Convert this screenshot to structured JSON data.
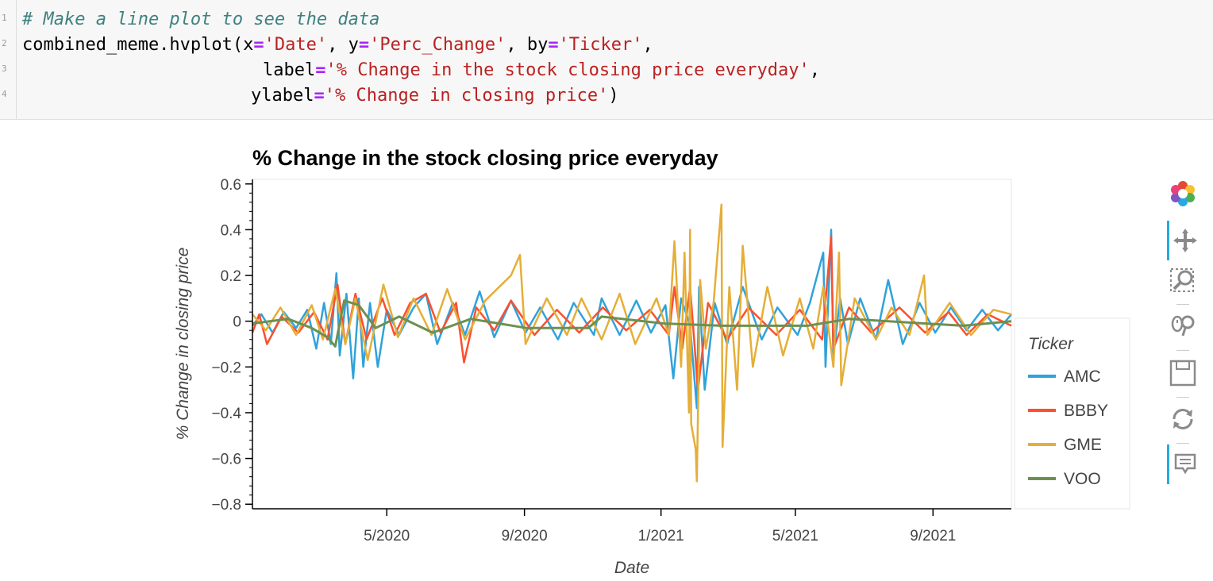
{
  "code": {
    "line_numbers": [
      "1",
      "2",
      "3",
      "4"
    ],
    "comment": "# Make a line plot to see the data",
    "l2_call": "combined_meme.hvplot(x",
    "l2_x_val": "'Date'",
    "l2_y_key": ", y",
    "l2_y_val": "'Perc_Change'",
    "l2_by_key": ", by",
    "l2_by_val": "'Ticker'",
    "l2_end": ",",
    "l3_key": "label",
    "l3_val": "'% Change in the stock closing price everyday'",
    "l3_end": ",",
    "l4_key": "ylabel",
    "l4_val": "'% Change in closing price'",
    "l4_end": ")",
    "eq": "="
  },
  "toolbar": {
    "icons": [
      "bokeh-logo-icon",
      "pan-icon",
      "box-zoom-icon",
      "wheel-zoom-icon",
      "save-icon",
      "reset-icon",
      "hover-icon"
    ]
  },
  "chart_data": {
    "type": "line",
    "title": "% Change in the stock closing price everyday",
    "xlabel": "Date",
    "ylabel": "% Change in closing price",
    "x_range": [
      "2020-01-02",
      "2021-11-10"
    ],
    "ylim": [
      -0.82,
      0.62
    ],
    "x_ticks": [
      {
        "date": "2020-05-01",
        "label": "5/2020"
      },
      {
        "date": "2020-09-01",
        "label": "9/2020"
      },
      {
        "date": "2021-01-01",
        "label": "1/2021"
      },
      {
        "date": "2021-05-01",
        "label": "5/2021"
      },
      {
        "date": "2021-09-01",
        "label": "9/2021"
      }
    ],
    "y_ticks": [
      {
        "value": 0.6,
        "label": "0.6"
      },
      {
        "value": 0.4,
        "label": "0.4"
      },
      {
        "value": 0.2,
        "label": "0.2"
      },
      {
        "value": 0,
        "label": "0"
      },
      {
        "value": -0.2,
        "label": "−0.2"
      },
      {
        "value": -0.4,
        "label": "−0.4"
      },
      {
        "value": -0.6,
        "label": "−0.6"
      },
      {
        "value": -0.8,
        "label": "−0.8"
      }
    ],
    "legend": {
      "title": "Ticker",
      "position": "right"
    },
    "grid": false,
    "series": [
      {
        "name": "AMC",
        "color": "#30a2da",
        "points": [
          [
            "2020-01-02",
            -0.02
          ],
          [
            "2020-01-10",
            0.03
          ],
          [
            "2020-01-20",
            -0.05
          ],
          [
            "2020-01-30",
            0.04
          ],
          [
            "2020-02-10",
            -0.03
          ],
          [
            "2020-02-20",
            0.05
          ],
          [
            "2020-02-28",
            -0.12
          ],
          [
            "2020-03-06",
            0.08
          ],
          [
            "2020-03-12",
            -0.1
          ],
          [
            "2020-03-17",
            0.21
          ],
          [
            "2020-03-20",
            -0.15
          ],
          [
            "2020-03-26",
            0.12
          ],
          [
            "2020-04-01",
            -0.25
          ],
          [
            "2020-04-06",
            0.1
          ],
          [
            "2020-04-10",
            -0.2
          ],
          [
            "2020-04-16",
            0.08
          ],
          [
            "2020-04-23",
            -0.2
          ],
          [
            "2020-05-01",
            0.05
          ],
          [
            "2020-05-12",
            -0.06
          ],
          [
            "2020-05-25",
            0.06
          ],
          [
            "2020-06-05",
            0.12
          ],
          [
            "2020-06-15",
            -0.1
          ],
          [
            "2020-06-29",
            0.08
          ],
          [
            "2020-07-10",
            -0.06
          ],
          [
            "2020-07-23",
            0.13
          ],
          [
            "2020-08-05",
            -0.07
          ],
          [
            "2020-08-20",
            0.09
          ],
          [
            "2020-09-02",
            -0.05
          ],
          [
            "2020-09-15",
            0.06
          ],
          [
            "2020-10-01",
            -0.08
          ],
          [
            "2020-10-15",
            0.08
          ],
          [
            "2020-11-02",
            -0.06
          ],
          [
            "2020-11-09",
            0.1
          ],
          [
            "2020-11-25",
            -0.06
          ],
          [
            "2020-12-10",
            0.09
          ],
          [
            "2020-12-23",
            -0.05
          ],
          [
            "2021-01-05",
            0.07
          ],
          [
            "2021-01-12",
            -0.25
          ],
          [
            "2021-01-19",
            0.1
          ],
          [
            "2021-01-27",
            -0.02
          ],
          [
            "2021-02-02",
            -0.38
          ],
          [
            "2021-02-04",
            0.15
          ],
          [
            "2021-02-09",
            -0.3
          ],
          [
            "2021-02-18",
            0.08
          ],
          [
            "2021-03-01",
            -0.1
          ],
          [
            "2021-03-15",
            0.15
          ],
          [
            "2021-04-01",
            -0.08
          ],
          [
            "2021-04-15",
            0.06
          ],
          [
            "2021-05-03",
            -0.06
          ],
          [
            "2021-05-14",
            0.08
          ],
          [
            "2021-05-26",
            0.3
          ],
          [
            "2021-05-28",
            -0.2
          ],
          [
            "2021-06-02",
            0.4
          ],
          [
            "2021-06-04",
            -0.15
          ],
          [
            "2021-06-10",
            0.1
          ],
          [
            "2021-06-17",
            -0.1
          ],
          [
            "2021-06-28",
            0.1
          ],
          [
            "2021-07-12",
            -0.08
          ],
          [
            "2021-07-23",
            0.18
          ],
          [
            "2021-08-05",
            -0.1
          ],
          [
            "2021-08-20",
            0.08
          ],
          [
            "2021-09-03",
            -0.05
          ],
          [
            "2021-09-17",
            0.06
          ],
          [
            "2021-10-01",
            -0.04
          ],
          [
            "2021-10-15",
            0.05
          ],
          [
            "2021-10-29",
            -0.04
          ],
          [
            "2021-11-10",
            0.03
          ]
        ]
      },
      {
        "name": "BBBY",
        "color": "#fc4f30",
        "points": [
          [
            "2020-01-02",
            -0.05
          ],
          [
            "2020-01-08",
            0.03
          ],
          [
            "2020-01-15",
            -0.1
          ],
          [
            "2020-01-28",
            0.02
          ],
          [
            "2020-02-12",
            -0.05
          ],
          [
            "2020-02-26",
            0.04
          ],
          [
            "2020-03-09",
            -0.08
          ],
          [
            "2020-03-18",
            0.16
          ],
          [
            "2020-03-25",
            -0.1
          ],
          [
            "2020-04-03",
            0.12
          ],
          [
            "2020-04-13",
            -0.08
          ],
          [
            "2020-04-27",
            0.1
          ],
          [
            "2020-05-08",
            -0.06
          ],
          [
            "2020-05-22",
            0.08
          ],
          [
            "2020-06-05",
            0.12
          ],
          [
            "2020-06-18",
            -0.05
          ],
          [
            "2020-07-02",
            0.08
          ],
          [
            "2020-07-09",
            -0.18
          ],
          [
            "2020-07-20",
            0.06
          ],
          [
            "2020-08-05",
            -0.04
          ],
          [
            "2020-08-20",
            0.09
          ],
          [
            "2020-09-10",
            -0.06
          ],
          [
            "2020-09-30",
            0.05
          ],
          [
            "2020-10-20",
            -0.05
          ],
          [
            "2020-11-10",
            0.06
          ],
          [
            "2020-12-01",
            -0.04
          ],
          [
            "2020-12-22",
            0.05
          ],
          [
            "2021-01-08",
            -0.06
          ],
          [
            "2021-01-13",
            0.15
          ],
          [
            "2021-01-20",
            -0.12
          ],
          [
            "2021-01-27",
            0.15
          ],
          [
            "2021-02-03",
            -0.3
          ],
          [
            "2021-02-12",
            0.08
          ],
          [
            "2021-03-01",
            -0.08
          ],
          [
            "2021-03-20",
            0.06
          ],
          [
            "2021-04-14",
            -0.06
          ],
          [
            "2021-05-05",
            0.05
          ],
          [
            "2021-05-25",
            -0.08
          ],
          [
            "2021-06-02",
            0.37
          ],
          [
            "2021-06-04",
            -0.12
          ],
          [
            "2021-06-18",
            0.06
          ],
          [
            "2021-07-08",
            -0.05
          ],
          [
            "2021-08-02",
            0.06
          ],
          [
            "2021-08-25",
            -0.05
          ],
          [
            "2021-09-15",
            0.04
          ],
          [
            "2021-10-01",
            -0.06
          ],
          [
            "2021-10-20",
            0.03
          ],
          [
            "2021-11-10",
            -0.02
          ]
        ]
      },
      {
        "name": "GME",
        "color": "#e5ae38",
        "points": [
          [
            "2020-01-02",
            0.03
          ],
          [
            "2020-01-14",
            -0.04
          ],
          [
            "2020-01-27",
            0.06
          ],
          [
            "2020-02-10",
            -0.06
          ],
          [
            "2020-02-24",
            0.07
          ],
          [
            "2020-03-05",
            -0.08
          ],
          [
            "2020-03-16",
            0.14
          ],
          [
            "2020-03-25",
            -0.1
          ],
          [
            "2020-04-03",
            0.1
          ],
          [
            "2020-04-14",
            -0.17
          ],
          [
            "2020-04-28",
            0.16
          ],
          [
            "2020-05-11",
            -0.07
          ],
          [
            "2020-05-25",
            0.1
          ],
          [
            "2020-06-10",
            -0.06
          ],
          [
            "2020-06-24",
            0.14
          ],
          [
            "2020-07-10",
            -0.08
          ],
          [
            "2020-07-28",
            0.09
          ],
          [
            "2020-08-20",
            0.2
          ],
          [
            "2020-08-28",
            0.29
          ],
          [
            "2020-09-02",
            -0.1
          ],
          [
            "2020-09-21",
            0.1
          ],
          [
            "2020-10-09",
            -0.06
          ],
          [
            "2020-10-22",
            0.1
          ],
          [
            "2020-11-09",
            -0.08
          ],
          [
            "2020-11-25",
            0.12
          ],
          [
            "2020-12-09",
            -0.1
          ],
          [
            "2020-12-28",
            0.1
          ],
          [
            "2021-01-08",
            -0.06
          ],
          [
            "2021-01-13",
            0.35
          ],
          [
            "2021-01-19",
            -0.2
          ],
          [
            "2021-01-22",
            0.3
          ],
          [
            "2021-01-26",
            -0.4
          ],
          [
            "2021-01-27",
            0.4
          ],
          [
            "2021-01-28",
            -0.45
          ],
          [
            "2021-02-01",
            -0.56
          ],
          [
            "2021-02-02",
            -0.7
          ],
          [
            "2021-02-05",
            0.18
          ],
          [
            "2021-02-10",
            -0.12
          ],
          [
            "2021-02-17",
            0.08
          ],
          [
            "2021-02-24",
            0.51
          ],
          [
            "2021-02-25",
            -0.55
          ],
          [
            "2021-03-03",
            0.15
          ],
          [
            "2021-03-10",
            -0.3
          ],
          [
            "2021-03-15",
            0.33
          ],
          [
            "2021-03-24",
            -0.2
          ],
          [
            "2021-04-06",
            0.15
          ],
          [
            "2021-04-20",
            -0.15
          ],
          [
            "2021-05-05",
            0.1
          ],
          [
            "2021-05-17",
            -0.12
          ],
          [
            "2021-05-26",
            0.15
          ],
          [
            "2021-06-04",
            -0.2
          ],
          [
            "2021-06-09",
            0.3
          ],
          [
            "2021-06-11",
            -0.28
          ],
          [
            "2021-06-23",
            0.1
          ],
          [
            "2021-07-12",
            -0.08
          ],
          [
            "2021-07-26",
            0.06
          ],
          [
            "2021-08-11",
            -0.06
          ],
          [
            "2021-08-24",
            0.2
          ],
          [
            "2021-08-27",
            -0.06
          ],
          [
            "2021-09-16",
            0.08
          ],
          [
            "2021-10-05",
            -0.06
          ],
          [
            "2021-10-25",
            0.05
          ],
          [
            "2021-11-10",
            0.03
          ]
        ]
      },
      {
        "name": "VOO",
        "color": "#6d904f",
        "points": [
          [
            "2020-01-02",
            -0.01
          ],
          [
            "2020-02-03",
            0.01
          ],
          [
            "2020-02-24",
            -0.03
          ],
          [
            "2020-03-09",
            -0.07
          ],
          [
            "2020-03-16",
            -0.11
          ],
          [
            "2020-03-24",
            0.09
          ],
          [
            "2020-04-06",
            0.07
          ],
          [
            "2020-04-21",
            -0.03
          ],
          [
            "2020-05-12",
            0.02
          ],
          [
            "2020-06-11",
            -0.05
          ],
          [
            "2020-07-15",
            0.01
          ],
          [
            "2020-09-03",
            -0.03
          ],
          [
            "2020-10-28",
            -0.03
          ],
          [
            "2020-11-09",
            0.02
          ],
          [
            "2021-01-04",
            -0.01
          ],
          [
            "2021-02-25",
            -0.02
          ],
          [
            "2021-05-12",
            -0.02
          ],
          [
            "2021-06-18",
            0.01
          ],
          [
            "2021-09-28",
            -0.02
          ],
          [
            "2021-11-10",
            0.0
          ]
        ]
      }
    ]
  }
}
